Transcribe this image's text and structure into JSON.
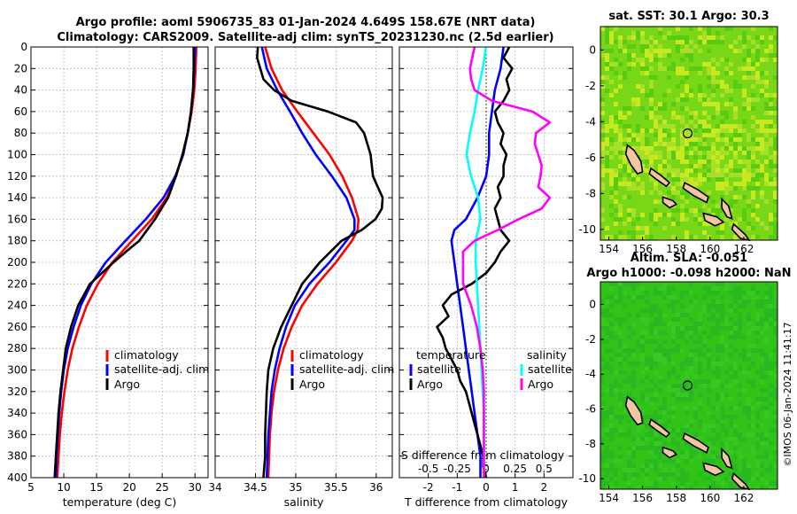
{
  "title": {
    "line1": "Argo profile: aoml 5906735_83 01-Jan-2024 4.649S 158.67E (NRT data)",
    "line2": "Climatology: CARS2009. Satellite-adj clim: synTS_20231230.nc (2.5d earlier)"
  },
  "stamp": "©IMOS 06-Jan-2024 11:41:17",
  "colors": {
    "clim": "#ff0000",
    "sat": "#0000ff",
    "argo": "#000000",
    "salsat": "#00ffff",
    "salargo": "#ff00ff",
    "land": "#f2c6a0"
  },
  "chart_data": [
    {
      "type": "line",
      "name": "temperature-profile",
      "xlabel": "temperature (deg C)",
      "xlim": [
        5,
        32
      ],
      "ylim": [
        0,
        400
      ],
      "x_ticks": [
        5,
        10,
        15,
        20,
        25,
        30
      ],
      "y_ticks": [
        0,
        20,
        40,
        60,
        80,
        100,
        120,
        140,
        160,
        180,
        200,
        220,
        240,
        260,
        280,
        300,
        320,
        340,
        360,
        380,
        400
      ],
      "legend": [
        "climatology",
        "satellite-adj. clim",
        "Argo"
      ],
      "series": [
        {
          "name": "climatology",
          "color": "#ff0000",
          "depth": [
            0,
            20,
            40,
            60,
            80,
            100,
            120,
            140,
            160,
            180,
            200,
            220,
            240,
            260,
            280,
            300,
            320,
            340,
            360,
            380,
            400
          ],
          "values": [
            30.2,
            30.1,
            29.9,
            29.5,
            28.9,
            28.1,
            27.1,
            25.7,
            23.4,
            20.4,
            17.4,
            15.2,
            13.5,
            12.3,
            11.3,
            10.6,
            10.1,
            9.7,
            9.4,
            9.2,
            9.0
          ]
        },
        {
          "name": "satellite-adj. clim",
          "color": "#0000ff",
          "depth": [
            0,
            20,
            40,
            60,
            80,
            100,
            120,
            140,
            160,
            180,
            200,
            220,
            240,
            260,
            280,
            300,
            320,
            340,
            360,
            380,
            400
          ],
          "values": [
            30.0,
            29.9,
            29.7,
            29.4,
            28.9,
            28.2,
            27.0,
            25.2,
            22.5,
            19.4,
            16.4,
            14.2,
            12.6,
            11.5,
            10.6,
            10.0,
            9.6,
            9.3,
            9.1,
            8.9,
            8.8
          ]
        },
        {
          "name": "Argo",
          "color": "#000000",
          "depth": [
            0,
            20,
            40,
            60,
            80,
            100,
            120,
            140,
            160,
            180,
            190,
            200,
            220,
            240,
            260,
            280,
            300,
            320,
            340,
            360,
            380,
            400
          ],
          "values": [
            29.8,
            29.8,
            29.7,
            29.4,
            28.9,
            28.1,
            27.1,
            25.9,
            23.9,
            21.5,
            19.5,
            17.6,
            14.0,
            12.2,
            11.1,
            10.3,
            9.9,
            9.5,
            9.2,
            9.0,
            8.8,
            8.6
          ]
        }
      ]
    },
    {
      "type": "line",
      "name": "salinity-profile",
      "xlabel": "salinity",
      "xlim": [
        34.0,
        36.2
      ],
      "ylim": [
        0,
        400
      ],
      "x_ticks": [
        34,
        34.5,
        35,
        35.5,
        36
      ],
      "legend": [
        "climatology",
        "satellite-adj. clim",
        "Argo"
      ],
      "series": [
        {
          "name": "climatology",
          "color": "#ff0000",
          "depth": [
            0,
            20,
            40,
            60,
            80,
            100,
            120,
            140,
            160,
            170,
            180,
            200,
            220,
            240,
            260,
            280,
            300,
            320,
            340,
            360,
            380,
            400
          ],
          "values": [
            34.62,
            34.7,
            34.83,
            35.02,
            35.22,
            35.42,
            35.58,
            35.7,
            35.78,
            35.77,
            35.7,
            35.5,
            35.27,
            35.08,
            34.95,
            34.85,
            34.78,
            34.73,
            34.7,
            34.68,
            34.67,
            34.66
          ]
        },
        {
          "name": "satellite-adj. clim",
          "color": "#0000ff",
          "depth": [
            0,
            20,
            40,
            60,
            80,
            100,
            120,
            140,
            160,
            170,
            180,
            200,
            220,
            240,
            260,
            280,
            300,
            320,
            340,
            360,
            380,
            400
          ],
          "values": [
            34.58,
            34.64,
            34.77,
            34.93,
            35.08,
            35.25,
            35.45,
            35.63,
            35.73,
            35.73,
            35.63,
            35.42,
            35.17,
            34.99,
            34.88,
            34.8,
            34.74,
            34.7,
            34.68,
            34.66,
            34.65,
            34.64
          ]
        },
        {
          "name": "Argo",
          "color": "#000000",
          "depth": [
            0,
            10,
            20,
            30,
            40,
            50,
            60,
            70,
            80,
            100,
            120,
            130,
            140,
            150,
            160,
            170,
            180,
            200,
            220,
            240,
            260,
            280,
            300,
            320,
            340,
            360,
            380,
            400
          ],
          "values": [
            34.53,
            34.52,
            34.56,
            34.6,
            34.73,
            34.95,
            35.4,
            35.75,
            35.85,
            35.93,
            35.96,
            36.02,
            36.08,
            36.07,
            35.99,
            35.82,
            35.57,
            35.3,
            35.08,
            34.95,
            34.82,
            34.72,
            34.66,
            34.64,
            34.63,
            34.62,
            34.62,
            34.6
          ]
        }
      ]
    },
    {
      "type": "line",
      "name": "difference-profile",
      "xlabel": "T difference from climatology",
      "top_xlabel": "S difference from climatology",
      "xlim": [
        -3,
        3
      ],
      "top_xlim": [
        -0.75,
        0.75
      ],
      "ylim": [
        0,
        400
      ],
      "x_ticks": [
        -2,
        -1,
        0,
        1,
        2
      ],
      "top_x_ticks": [
        "-0.5",
        "-0.25",
        "0",
        "0.25",
        "0.5"
      ],
      "legend": {
        "temperature_header": "temperature",
        "salinity_header": "salinity",
        "satellite": "satellite",
        "argo": "Argo"
      },
      "series": [
        {
          "name": "temperature satellite",
          "color": "#0000ff",
          "axis": "T",
          "depth": [
            0,
            20,
            40,
            60,
            80,
            100,
            120,
            140,
            160,
            170,
            180,
            200,
            220,
            240,
            260,
            280,
            300,
            320,
            340,
            360,
            380,
            400
          ],
          "values": [
            0.6,
            0.5,
            0.3,
            0.2,
            0.1,
            0.1,
            0.0,
            -0.3,
            -0.7,
            -1.1,
            -1.2,
            -1.1,
            -1.0,
            -0.9,
            -0.8,
            -0.7,
            -0.6,
            -0.5,
            -0.4,
            -0.3,
            -0.2,
            -0.2
          ]
        },
        {
          "name": "temperature Argo",
          "color": "#000000",
          "axis": "T",
          "depth": [
            0,
            10,
            20,
            30,
            40,
            50,
            60,
            70,
            80,
            90,
            100,
            110,
            120,
            130,
            140,
            150,
            160,
            170,
            180,
            190,
            200,
            210,
            220,
            230,
            240,
            250,
            260,
            270,
            280,
            290,
            300,
            310,
            320,
            330,
            340,
            350,
            360,
            370,
            380,
            390,
            400
          ],
          "values": [
            0.8,
            0.6,
            0.9,
            0.7,
            0.8,
            0.6,
            0.3,
            0.4,
            0.6,
            0.5,
            0.7,
            0.6,
            0.6,
            0.4,
            0.5,
            0.3,
            0.4,
            0.5,
            0.8,
            0.5,
            0.3,
            0.0,
            -0.5,
            -1.2,
            -1.5,
            -1.3,
            -1.7,
            -1.5,
            -1.4,
            -1.2,
            -1.0,
            -0.9,
            -0.7,
            -0.6,
            -0.5,
            -0.4,
            -0.3,
            -0.2,
            -0.1,
            -0.1,
            0.0
          ]
        },
        {
          "name": "salinity satellite",
          "color": "#00ffff",
          "axis": "S",
          "depth": [
            0,
            20,
            40,
            60,
            80,
            100,
            120,
            140,
            160,
            170,
            180,
            200,
            220,
            240,
            260,
            280,
            300,
            320,
            340,
            360,
            380,
            400
          ],
          "values": [
            0.0,
            -0.03,
            -0.07,
            -0.1,
            -0.14,
            -0.17,
            -0.13,
            -0.07,
            -0.05,
            -0.07,
            -0.09,
            -0.09,
            -0.08,
            -0.07,
            -0.06,
            -0.05,
            -0.04,
            -0.03,
            -0.02,
            -0.02,
            -0.02,
            -0.02
          ]
        },
        {
          "name": "salinity Argo",
          "color": "#ff00ff",
          "axis": "S",
          "depth": [
            0,
            10,
            20,
            30,
            40,
            50,
            60,
            70,
            80,
            90,
            100,
            110,
            120,
            130,
            140,
            150,
            160,
            170,
            180,
            190,
            200,
            220,
            240,
            260,
            280,
            300,
            320,
            340,
            360,
            380,
            400
          ],
          "values": [
            -0.1,
            -0.12,
            -0.14,
            -0.13,
            -0.1,
            0.05,
            0.4,
            0.55,
            0.43,
            0.42,
            0.45,
            0.48,
            0.47,
            0.45,
            0.55,
            0.48,
            0.28,
            0.1,
            -0.1,
            -0.2,
            -0.2,
            -0.2,
            -0.13,
            -0.08,
            -0.05,
            -0.03,
            -0.02,
            -0.02,
            -0.02,
            -0.02,
            -0.02
          ]
        }
      ]
    },
    {
      "type": "heatmap",
      "name": "sst-map",
      "title": "sat. SST: 30.1 Argo: 30.3",
      "xlim": [
        153.5,
        164
      ],
      "ylim": [
        -10.6,
        1.3
      ],
      "x_ticks": [
        154,
        156,
        158,
        160,
        162
      ],
      "y_ticks": [
        0,
        -2,
        -4,
        -6,
        -8,
        -10
      ],
      "argo_position": [
        158.67,
        -4.649
      ]
    },
    {
      "type": "heatmap",
      "name": "sla-map",
      "title": "Altim. SLA: -0.051",
      "subtitle": "Argo h1000: -0.098 h2000: NaN",
      "xlim": [
        153.5,
        164
      ],
      "ylim": [
        -10.6,
        1.3
      ],
      "x_ticks": [
        154,
        156,
        158,
        160,
        162
      ],
      "y_ticks": [
        0,
        -2,
        -4,
        -6,
        -8,
        -10
      ],
      "argo_position": [
        158.67,
        -4.649
      ]
    }
  ]
}
